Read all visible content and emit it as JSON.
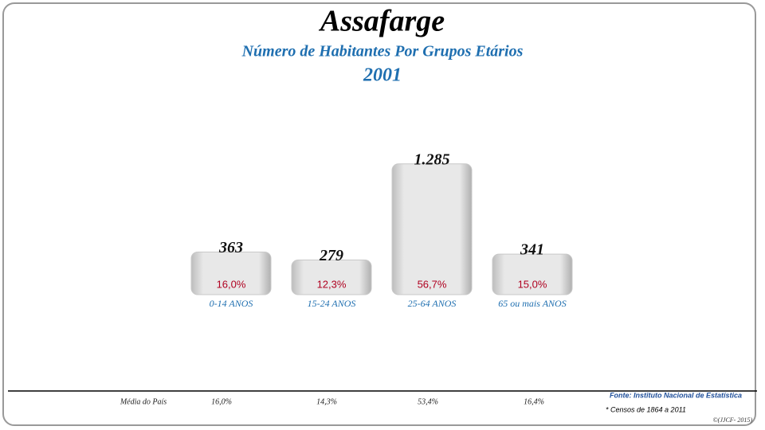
{
  "chart_data": {
    "type": "bar",
    "title": "Assafarge",
    "subtitle": "Número de Habitantes Por Grupos Etários",
    "year": "2001",
    "categories": [
      "0-14 ANOS",
      "15-24 ANOS",
      "25-64 ANOS",
      "65 ou mais ANOS"
    ],
    "values": [
      363,
      279,
      1285,
      341
    ],
    "value_labels": [
      "363",
      "279",
      "1.285",
      "341"
    ],
    "share_labels": [
      "16,0%",
      "12,3%",
      "56,7%",
      "15,0%"
    ],
    "national_label": "Média do País",
    "national_share_labels": [
      "16,0%",
      "14,3%",
      "53,4%",
      "16,4%"
    ],
    "source": "Fonte: Instituto Nacional de Estatística",
    "note": "* Censos de 1864 a 2011",
    "credit": "©(JJCF- 2015)"
  }
}
